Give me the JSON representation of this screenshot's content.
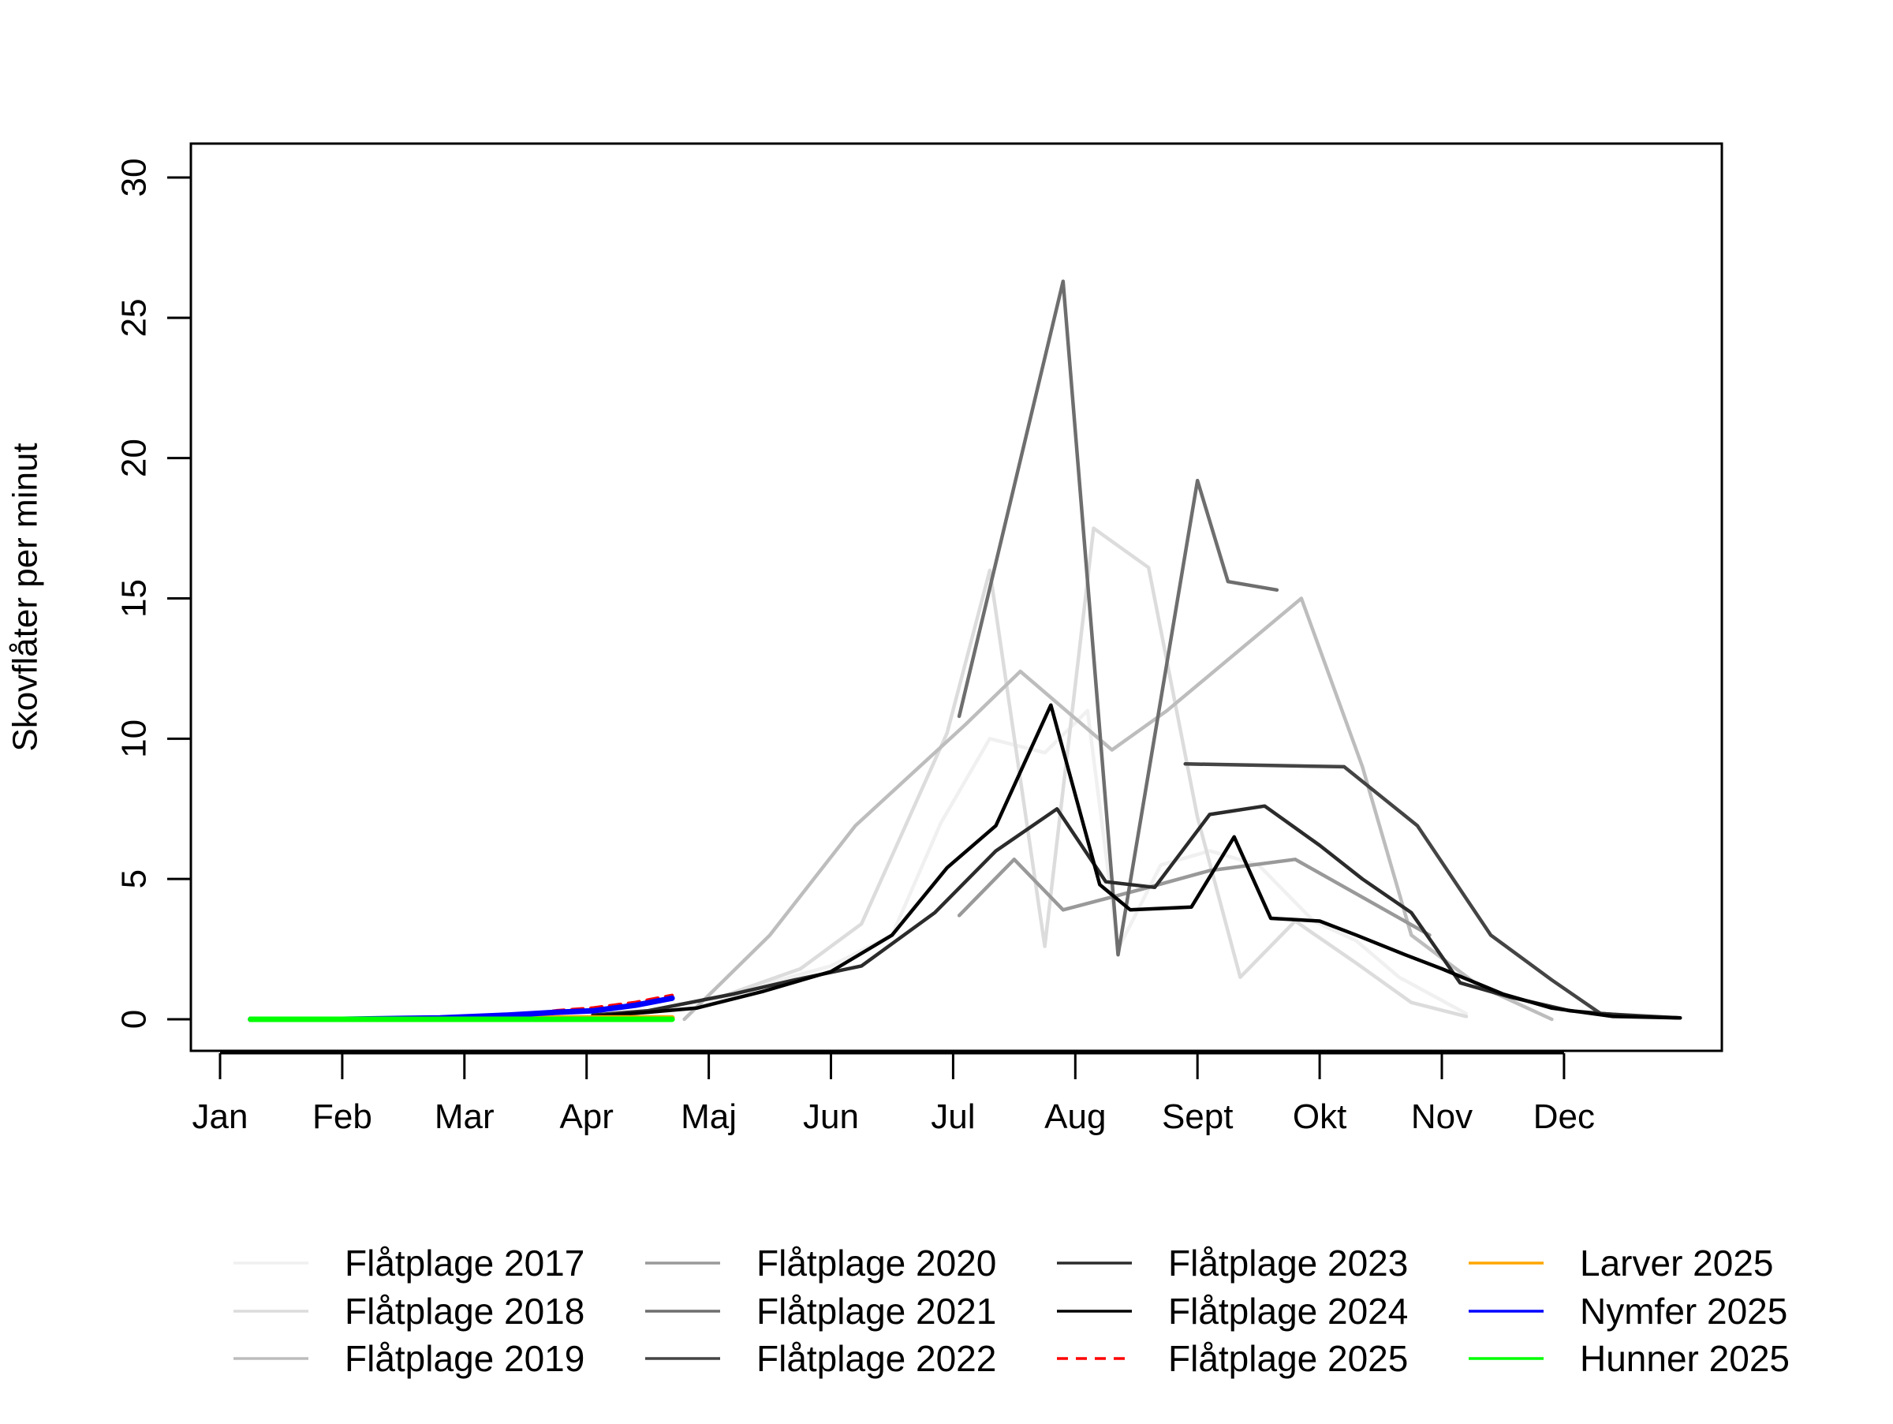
{
  "chart_data": {
    "type": "line",
    "title": "",
    "xlabel": "",
    "ylabel": "Skovflåter per minut",
    "ylim": [
      0,
      30
    ],
    "yticks": [
      0,
      5,
      10,
      15,
      20,
      25,
      30
    ],
    "xlim_month_index": [
      0,
      12
    ],
    "months": [
      "Jan",
      "Feb",
      "Mar",
      "Apr",
      "Maj",
      "Jun",
      "Jul",
      "Aug",
      "Sept",
      "Okt",
      "Nov",
      "Dec"
    ],
    "grid": false,
    "legend_position": "bottom",
    "series": [
      {
        "name": "Flåtplage 2017",
        "color": "#f0f0f0",
        "dash": "solid",
        "points": [
          [
            3.05,
            0.1
          ],
          [
            3.5,
            0.25
          ],
          [
            3.9,
            0.4
          ],
          [
            4.5,
            1.3
          ],
          [
            5.0,
            1.9
          ],
          [
            5.5,
            3.0
          ],
          [
            5.9,
            7.0
          ],
          [
            6.3,
            10.0
          ],
          [
            6.75,
            9.5
          ],
          [
            7.1,
            11.0
          ],
          [
            7.35,
            2.5
          ],
          [
            7.7,
            5.5
          ],
          [
            8.1,
            6.0
          ],
          [
            8.5,
            5.5
          ],
          [
            8.95,
            3.5
          ],
          [
            9.3,
            2.8
          ],
          [
            9.65,
            1.5
          ],
          [
            10.2,
            0.2
          ]
        ]
      },
      {
        "name": "Flåtplage 2018",
        "color": "#dcdcdc",
        "dash": "solid",
        "points": [
          [
            3.05,
            0.1
          ],
          [
            3.5,
            0.3
          ],
          [
            4.1,
            0.8
          ],
          [
            4.75,
            1.8
          ],
          [
            5.25,
            3.4
          ],
          [
            5.95,
            10.2
          ],
          [
            6.3,
            16.0
          ],
          [
            6.75,
            2.6
          ],
          [
            7.15,
            17.5
          ],
          [
            7.6,
            16.1
          ],
          [
            8.0,
            7.2
          ],
          [
            8.35,
            1.5
          ],
          [
            8.8,
            3.5
          ],
          [
            9.3,
            2.0
          ],
          [
            9.75,
            0.6
          ],
          [
            10.2,
            0.1
          ]
        ]
      },
      {
        "name": "Flåtplage 2019",
        "color": "#bdbdbd",
        "dash": "solid",
        "points": [
          [
            3.8,
            0.0
          ],
          [
            4.5,
            3.0
          ],
          [
            5.2,
            6.9
          ],
          [
            6.1,
            10.5
          ],
          [
            6.55,
            12.4
          ],
          [
            7.3,
            9.6
          ],
          [
            7.75,
            11.0
          ],
          [
            8.85,
            15.0
          ],
          [
            9.35,
            9.0
          ],
          [
            9.75,
            3.0
          ],
          [
            10.3,
            1.2
          ],
          [
            10.9,
            0.0
          ]
        ]
      },
      {
        "name": "Flåtplage 2020",
        "color": "#999999",
        "dash": "solid",
        "points": [
          [
            6.05,
            3.7
          ],
          [
            6.5,
            5.7
          ],
          [
            6.9,
            3.9
          ],
          [
            7.6,
            4.7
          ],
          [
            8.1,
            5.3
          ],
          [
            8.8,
            5.7
          ],
          [
            9.9,
            3.0
          ]
        ]
      },
      {
        "name": "Flåtplage 2021",
        "color": "#6e6e6e",
        "dash": "solid",
        "points": [
          [
            6.05,
            10.8
          ],
          [
            6.9,
            26.3
          ],
          [
            7.35,
            2.3
          ],
          [
            8.0,
            19.2
          ],
          [
            8.25,
            15.6
          ],
          [
            8.65,
            15.3
          ]
        ]
      },
      {
        "name": "Flåtplage 2022",
        "color": "#444444",
        "dash": "solid",
        "points": [
          [
            7.9,
            9.1
          ],
          [
            9.2,
            9.0
          ],
          [
            9.8,
            6.9
          ],
          [
            10.4,
            3.0
          ],
          [
            10.9,
            1.4
          ],
          [
            11.3,
            0.2
          ],
          [
            11.95,
            0.05
          ]
        ]
      },
      {
        "name": "Flåtplage 2023",
        "color": "#2b2b2b",
        "dash": "solid",
        "points": [
          [
            3.05,
            0.15
          ],
          [
            3.5,
            0.3
          ],
          [
            4.2,
            0.9
          ],
          [
            4.7,
            1.4
          ],
          [
            5.25,
            1.9
          ],
          [
            5.85,
            3.8
          ],
          [
            6.35,
            6.0
          ],
          [
            6.85,
            7.5
          ],
          [
            7.25,
            4.9
          ],
          [
            7.65,
            4.7
          ],
          [
            8.1,
            7.3
          ],
          [
            8.55,
            7.6
          ],
          [
            9.0,
            6.2
          ],
          [
            9.35,
            5.0
          ],
          [
            9.75,
            3.8
          ],
          [
            10.15,
            1.3
          ],
          [
            10.55,
            0.8
          ],
          [
            11.05,
            0.3
          ],
          [
            11.6,
            0.1
          ],
          [
            11.95,
            0.05
          ]
        ]
      },
      {
        "name": "Flåtplage 2024",
        "color": "#000000",
        "dash": "solid",
        "points": [
          [
            3.05,
            0.1
          ],
          [
            3.5,
            0.25
          ],
          [
            3.9,
            0.4
          ],
          [
            4.45,
            1.0
          ],
          [
            5.0,
            1.7
          ],
          [
            5.5,
            3.0
          ],
          [
            5.95,
            5.4
          ],
          [
            6.35,
            6.9
          ],
          [
            6.8,
            11.2
          ],
          [
            7.2,
            4.8
          ],
          [
            7.45,
            3.9
          ],
          [
            7.95,
            4.0
          ],
          [
            8.3,
            6.5
          ],
          [
            8.6,
            3.6
          ],
          [
            9.0,
            3.5
          ],
          [
            9.3,
            3.0
          ],
          [
            9.7,
            2.3
          ],
          [
            10.0,
            1.8
          ],
          [
            10.5,
            0.9
          ],
          [
            10.9,
            0.4
          ],
          [
            11.4,
            0.1
          ],
          [
            11.95,
            0.05
          ]
        ]
      },
      {
        "name": "Flåtplage 2025",
        "color": "#ff0000",
        "dash": "dashed",
        "points": [
          [
            0.25,
            0.0
          ],
          [
            1.0,
            0.0
          ],
          [
            1.8,
            0.05
          ],
          [
            2.35,
            0.1
          ],
          [
            2.75,
            0.3
          ],
          [
            3.05,
            0.4
          ],
          [
            3.4,
            0.6
          ],
          [
            3.7,
            0.85
          ]
        ]
      },
      {
        "name": "Larver 2025",
        "color": "#ffa500",
        "dash": "solid",
        "points": [
          [
            0.25,
            0.0
          ],
          [
            1.0,
            0.0
          ],
          [
            1.8,
            0.0
          ],
          [
            2.35,
            0.05
          ],
          [
            2.75,
            0.05
          ],
          [
            3.05,
            0.05
          ],
          [
            3.4,
            0.05
          ],
          [
            3.7,
            0.05
          ]
        ]
      },
      {
        "name": "Nymfer 2025",
        "color": "#0000ff",
        "dash": "solid",
        "points": [
          [
            0.25,
            0.0
          ],
          [
            1.0,
            0.0
          ],
          [
            1.8,
            0.05
          ],
          [
            2.35,
            0.15
          ],
          [
            2.75,
            0.25
          ],
          [
            3.05,
            0.3
          ],
          [
            3.4,
            0.5
          ],
          [
            3.7,
            0.75
          ]
        ]
      },
      {
        "name": "Hunner 2025",
        "color": "#00ff00",
        "dash": "solid",
        "points": [
          [
            0.25,
            0.0
          ],
          [
            1.0,
            0.0
          ],
          [
            1.8,
            0.0
          ],
          [
            2.35,
            0.0
          ],
          [
            2.75,
            0.0
          ],
          [
            3.05,
            0.0
          ],
          [
            3.4,
            0.0
          ],
          [
            3.7,
            0.0
          ]
        ]
      }
    ]
  }
}
